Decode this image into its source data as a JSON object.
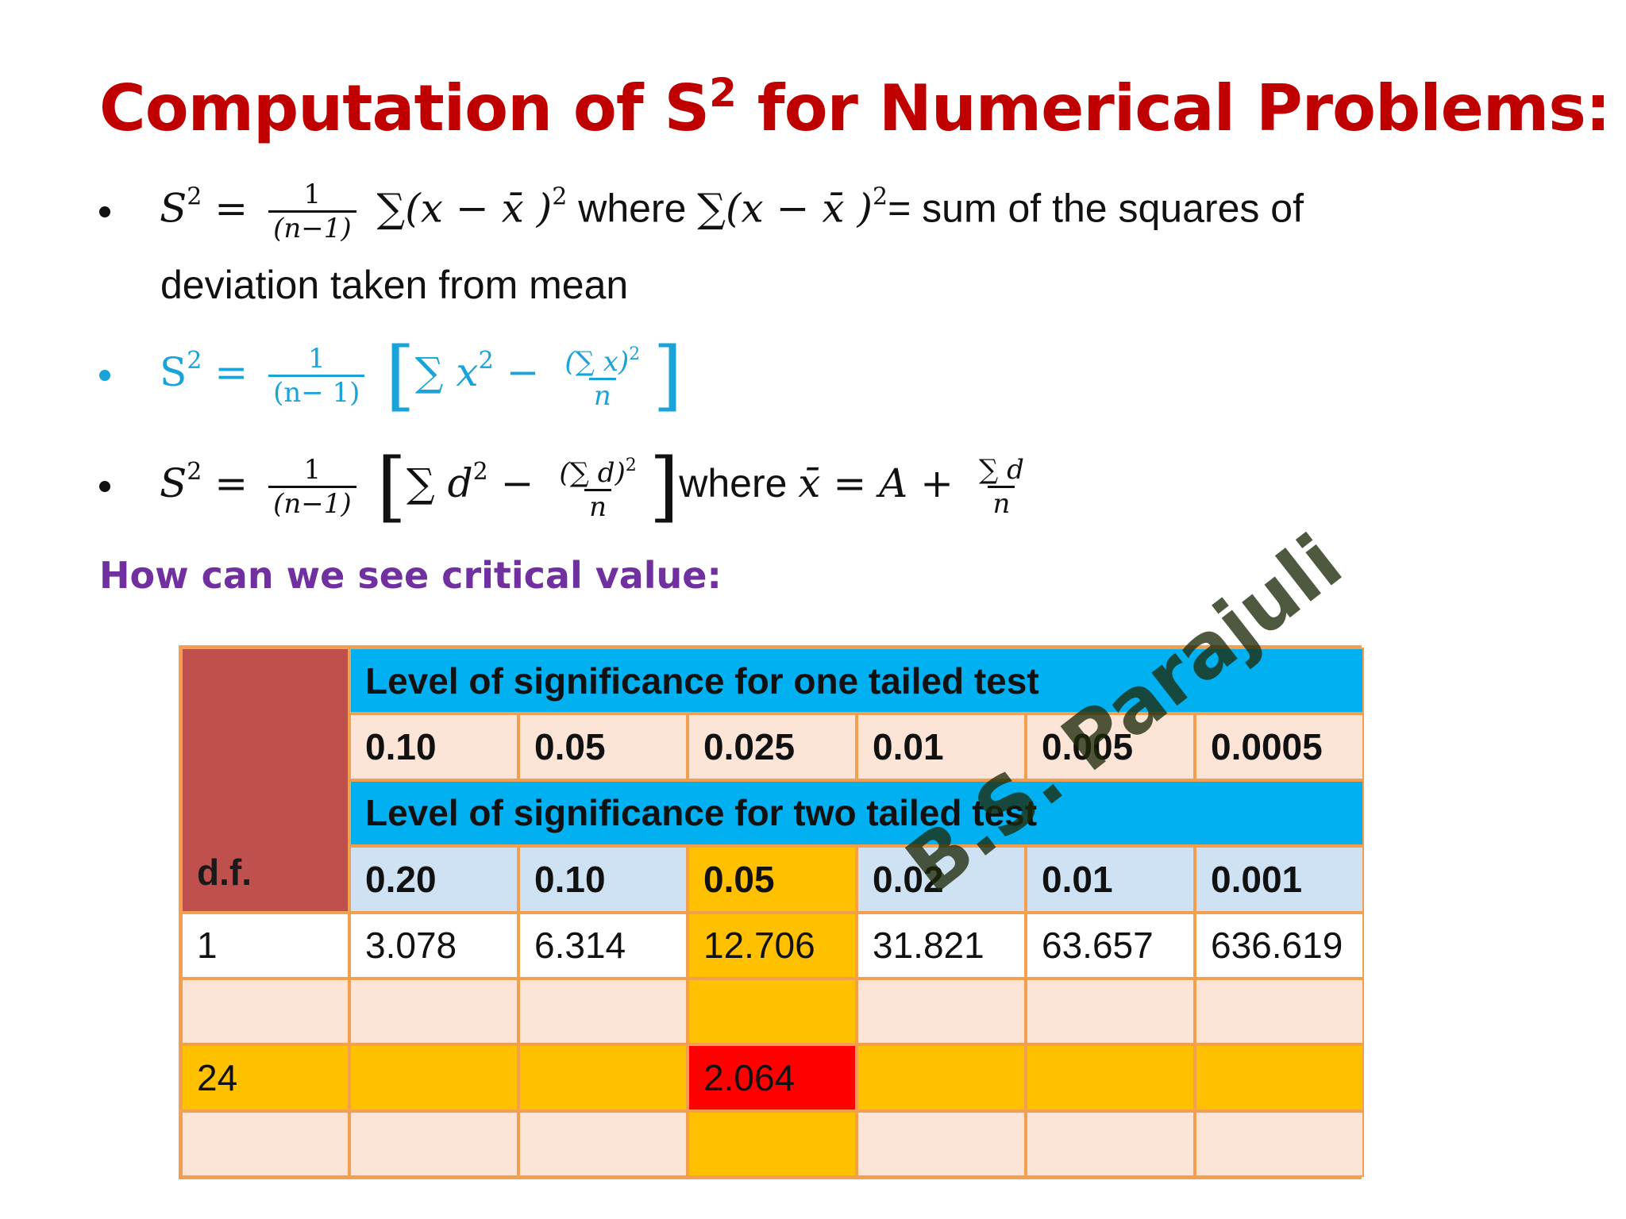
{
  "title": {
    "prefix": "Computation of S",
    "superscript": "2",
    "suffix": " for Numerical Problems:"
  },
  "bullets": [
    {
      "formula_lhs": "S",
      "formula_lhs_exp": "2",
      "eq": "=",
      "frac_num": "1",
      "frac_den": "(n−1)",
      "sum_expr": "∑(x − x̄ )",
      "sum_exp": "2",
      "where": " where ",
      "sum_expr2": "∑(x − x̄ )",
      "sum_exp2": "2",
      "explanation": "= sum of the squares of",
      "continuation": "deviation taken from mean"
    },
    {
      "formula_lhs": "S",
      "formula_lhs_exp": "2",
      "eq": "=",
      "frac_num": "1",
      "frac_den": "(n− 1)",
      "bracket_open": "[",
      "sum_term": "∑ x",
      "sum_term_exp": "2",
      "minus": "−",
      "inner_num": "(∑ x)",
      "inner_num_exp": "2",
      "inner_den": "n",
      "bracket_close": "]"
    },
    {
      "formula_lhs": "S",
      "formula_lhs_exp": "2",
      "eq": "=",
      "frac_num": "1",
      "frac_den": "(n−1)",
      "bracket_open": "[",
      "sum_term": "∑ d",
      "sum_term_exp": "2",
      "minus": "−",
      "inner_num": "(∑ d)",
      "inner_num_exp": "2",
      "inner_den": "n",
      "bracket_close": "]",
      "where": "where ",
      "mean_expr": "x̄ = A +",
      "mean_num": "∑ d",
      "mean_den": "n"
    }
  ],
  "subheading": "How can we see critical value:",
  "table": {
    "df_label": "d.f.",
    "one_tailed_header": "Level of significance for one tailed test",
    "one_tailed_levels": [
      "0.10",
      "0.05",
      "0.025",
      "0.01",
      "0.005",
      "0.0005"
    ],
    "two_tailed_header": "Level of significance for two tailed test",
    "two_tailed_levels": [
      "0.20",
      "0.10",
      "0.05",
      "0.02",
      "0.01",
      "0.001"
    ],
    "rows": [
      {
        "df": "1",
        "values": [
          "3.078",
          "6.314",
          "12.706",
          "31.821",
          "63.657",
          "636.619"
        ]
      },
      {
        "df": "",
        "values": [
          "",
          "",
          "",
          "",
          "",
          ""
        ]
      },
      {
        "df": "24",
        "values": [
          "",
          "",
          "2.064",
          "",
          "",
          ""
        ]
      },
      {
        "df": "",
        "values": [
          "",
          "",
          "",
          "",
          "",
          ""
        ]
      }
    ],
    "highlight_colors": {
      "header_blue": "#00b0f0",
      "df_header": "#c0504d",
      "column_highlight": "#ffc000",
      "row_highlight": "#ffc000",
      "critical_cell": "#ff0000"
    }
  },
  "watermark": "B.S. Parajuli"
}
